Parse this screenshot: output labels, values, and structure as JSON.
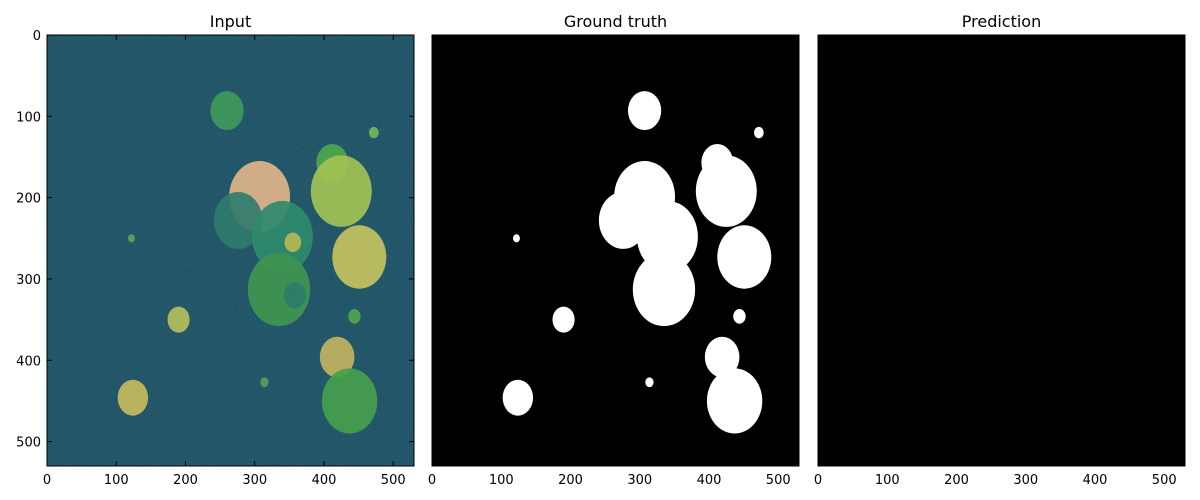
{
  "chart_data": [
    {
      "type": "heatmap",
      "title": "Input",
      "xlim": [
        0,
        530
      ],
      "ylim": [
        530,
        0
      ],
      "xticks": [
        0,
        100,
        200,
        300,
        400,
        500
      ],
      "yticks": [
        0,
        100,
        200,
        300,
        400,
        500
      ],
      "background": "#275f73",
      "circles": [
        {
          "cx": 260,
          "cy": 93,
          "r": 24,
          "color": "#3f9a5a"
        },
        {
          "cx": 472,
          "cy": 120,
          "r": 7,
          "color": "#74b45a"
        },
        {
          "cx": 412,
          "cy": 157,
          "r": 23,
          "color": "#4ea84d"
        },
        {
          "cx": 307,
          "cy": 199,
          "r": 44,
          "color": "#e0b48a"
        },
        {
          "cx": 425,
          "cy": 192,
          "r": 44,
          "color": "#a2c255"
        },
        {
          "cx": 276,
          "cy": 228,
          "r": 35,
          "color": "#2f7c6a"
        },
        {
          "cx": 340,
          "cy": 248,
          "r": 44,
          "color": "#2f8a6c"
        },
        {
          "cx": 355,
          "cy": 255,
          "r": 12,
          "color": "#b4ba54"
        },
        {
          "cx": 122,
          "cy": 250,
          "r": 5,
          "color": "#5aa856"
        },
        {
          "cx": 451,
          "cy": 273,
          "r": 39,
          "color": "#c4c25e"
        },
        {
          "cx": 335,
          "cy": 313,
          "r": 45,
          "color": "#3f9650"
        },
        {
          "cx": 358,
          "cy": 320,
          "r": 16,
          "color": "#2d7d6a"
        },
        {
          "cx": 190,
          "cy": 350,
          "r": 16,
          "color": "#b5bf5d"
        },
        {
          "cx": 444,
          "cy": 346,
          "r": 9,
          "color": "#4fa54f"
        },
        {
          "cx": 419,
          "cy": 396,
          "r": 25,
          "color": "#c1b35f"
        },
        {
          "cx": 314,
          "cy": 427,
          "r": 6,
          "color": "#5a9c5a"
        },
        {
          "cx": 124,
          "cy": 446,
          "r": 22,
          "color": "#c6bb5e"
        },
        {
          "cx": 437,
          "cy": 450,
          "r": 40,
          "color": "#45a04c"
        }
      ]
    },
    {
      "type": "heatmap",
      "title": "Ground truth",
      "xlim": [
        0,
        530
      ],
      "ylim": [
        530,
        0
      ],
      "xticks": [
        0,
        100,
        200,
        300,
        400,
        500
      ],
      "yticks": [],
      "background": "#000000",
      "circles": [
        {
          "cx": 307,
          "cy": 93,
          "r": 24,
          "color": "#ffffff"
        },
        {
          "cx": 472,
          "cy": 120,
          "r": 7,
          "color": "#ffffff"
        },
        {
          "cx": 412,
          "cy": 157,
          "r": 23,
          "color": "#ffffff"
        },
        {
          "cx": 307,
          "cy": 199,
          "r": 44,
          "color": "#ffffff"
        },
        {
          "cx": 425,
          "cy": 192,
          "r": 44,
          "color": "#ffffff"
        },
        {
          "cx": 276,
          "cy": 228,
          "r": 35,
          "color": "#ffffff"
        },
        {
          "cx": 340,
          "cy": 248,
          "r": 44,
          "color": "#ffffff"
        },
        {
          "cx": 122,
          "cy": 250,
          "r": 5,
          "color": "#ffffff"
        },
        {
          "cx": 451,
          "cy": 273,
          "r": 39,
          "color": "#ffffff"
        },
        {
          "cx": 335,
          "cy": 313,
          "r": 45,
          "color": "#ffffff"
        },
        {
          "cx": 190,
          "cy": 350,
          "r": 16,
          "color": "#ffffff"
        },
        {
          "cx": 444,
          "cy": 346,
          "r": 9,
          "color": "#ffffff"
        },
        {
          "cx": 419,
          "cy": 396,
          "r": 25,
          "color": "#ffffff"
        },
        {
          "cx": 314,
          "cy": 427,
          "r": 6,
          "color": "#ffffff"
        },
        {
          "cx": 124,
          "cy": 446,
          "r": 22,
          "color": "#ffffff"
        },
        {
          "cx": 437,
          "cy": 450,
          "r": 40,
          "color": "#ffffff"
        }
      ]
    },
    {
      "type": "heatmap",
      "title": "Prediction",
      "xlim": [
        0,
        530
      ],
      "ylim": [
        530,
        0
      ],
      "xticks": [
        0,
        100,
        200,
        300,
        400,
        500
      ],
      "yticks": [],
      "background": "#000000",
      "circles": []
    }
  ]
}
